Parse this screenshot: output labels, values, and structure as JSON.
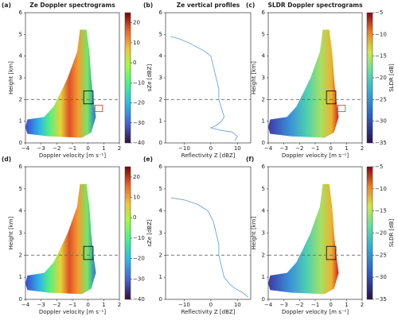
{
  "chart_data": [
    {
      "type": "spectrogram",
      "panel_label": "(a)",
      "title": "Ze Doppler spectrograms",
      "xlabel": "Doppler velocity [m s⁻¹]",
      "ylabel": "Height [km]",
      "xlim": [
        -4,
        2
      ],
      "xticks": [
        {
          "value": -4,
          "label": "−4"
        },
        {
          "value": -3,
          "label": "−3"
        },
        {
          "value": -2,
          "label": "−2"
        },
        {
          "value": -1,
          "label": "−1"
        },
        0,
        1,
        2
      ],
      "ylim": [
        0,
        6
      ],
      "yticks": [
        0,
        1,
        2,
        3,
        4,
        5,
        6
      ],
      "hline": 2,
      "colormap": "turbo",
      "colorbar_label": "sZe [dBZ]",
      "clim": [
        -40,
        25
      ],
      "cticks": [
        20,
        10,
        0,
        {
          "value": -10,
          "label": "−10"
        },
        {
          "value": -20,
          "label": "−20"
        },
        {
          "value": -30,
          "label": "−30"
        },
        {
          "value": -40,
          "label": "−40"
        }
      ]
    },
    {
      "type": "line",
      "panel_label": "(b)",
      "title": "Ze vertical profiles",
      "xlabel": "Reflectivity Z [dBZ]",
      "xlim": [
        -17,
        15
      ],
      "xticks": [
        {
          "value": -10,
          "label": "−10"
        },
        0,
        10
      ],
      "ylim": [
        0,
        6
      ],
      "yticks": [
        0,
        1,
        2,
        3,
        4,
        5,
        6
      ],
      "hline": 2,
      "color": "#5b9bd5",
      "x": [
        -15,
        -12,
        -8,
        -5,
        -2,
        0,
        1,
        2,
        3,
        3,
        4,
        5,
        4,
        2,
        0,
        3,
        8,
        10,
        9
      ],
      "y": [
        4.9,
        4.8,
        4.6,
        4.4,
        4.2,
        4.0,
        3.5,
        3.0,
        2.5,
        2.0,
        1.6,
        1.2,
        1.0,
        0.8,
        0.7,
        0.6,
        0.5,
        0.3,
        0.1
      ]
    },
    {
      "type": "spectrogram",
      "panel_label": "(c)",
      "title": "SLDR Doppler spectrograms",
      "xlabel": "Doppler velocity [m s⁻¹]",
      "ylabel": "Height [km]",
      "xlim": [
        -4,
        2
      ],
      "xticks": [
        {
          "value": -4,
          "label": "−4"
        },
        {
          "value": -3,
          "label": "−3"
        },
        {
          "value": -2,
          "label": "−2"
        },
        {
          "value": -1,
          "label": "−1"
        },
        0,
        1,
        2
      ],
      "ylim": [
        0,
        6
      ],
      "yticks": [
        0,
        1,
        2,
        3,
        4,
        5,
        6
      ],
      "hline": 2,
      "colormap": "sldr",
      "colorbar_label": "SLDR [dB]",
      "clim": [
        -35,
        -5
      ],
      "cticks": [
        {
          "value": -5,
          "label": "−5"
        },
        {
          "value": -10,
          "label": "−10"
        },
        {
          "value": -15,
          "label": "−15"
        },
        {
          "value": -20,
          "label": "−20"
        },
        {
          "value": -25,
          "label": "−25"
        },
        {
          "value": -30,
          "label": "−30"
        },
        {
          "value": -35,
          "label": "−35"
        }
      ]
    },
    {
      "type": "spectrogram",
      "panel_label": "(d)",
      "xlabel": "Doppler velocity [m s⁻¹]",
      "ylabel": "Height [km]",
      "xlim": [
        -4,
        2
      ],
      "xticks": [
        {
          "value": -4,
          "label": "−4"
        },
        {
          "value": -3,
          "label": "−3"
        },
        {
          "value": -2,
          "label": "−2"
        },
        {
          "value": -1,
          "label": "−1"
        },
        0,
        1,
        2
      ],
      "ylim": [
        0,
        6
      ],
      "yticks": [
        0,
        1,
        2,
        3,
        4,
        5,
        6
      ],
      "hline": 2,
      "colormap": "turbo",
      "colorbar_label": "sZe [dBZ]",
      "clim": [
        -40,
        25
      ],
      "cticks": [
        20,
        10,
        0,
        {
          "value": -10,
          "label": "−10"
        },
        {
          "value": -20,
          "label": "−20"
        },
        {
          "value": -30,
          "label": "−30"
        },
        {
          "value": -40,
          "label": "−40"
        }
      ]
    },
    {
      "type": "line",
      "panel_label": "(e)",
      "xlabel": "Reflectivity Z [dBZ]",
      "xlim": [
        -17,
        15
      ],
      "xticks": [
        {
          "value": -10,
          "label": "−10"
        },
        0,
        10
      ],
      "ylim": [
        0,
        6
      ],
      "yticks": [
        0,
        1,
        2,
        3,
        4,
        5,
        6
      ],
      "hline": 2,
      "color": "#5b9bd5",
      "x": [
        -15,
        -10,
        -5,
        -1,
        1,
        2,
        3,
        3,
        4,
        5,
        7,
        9,
        12,
        14
      ],
      "y": [
        4.6,
        4.5,
        4.3,
        4.0,
        3.5,
        3.0,
        2.5,
        2.0,
        1.5,
        1.0,
        0.7,
        0.5,
        0.3,
        0.1
      ]
    },
    {
      "type": "spectrogram",
      "panel_label": "(f)",
      "xlabel": "Doppler velocity [m s⁻¹]",
      "ylabel": "Height [km]",
      "xlim": [
        -4,
        2
      ],
      "xticks": [
        {
          "value": -4,
          "label": "−4"
        },
        {
          "value": -3,
          "label": "−3"
        },
        {
          "value": -2,
          "label": "−2"
        },
        {
          "value": -1,
          "label": "−1"
        },
        0,
        1,
        2
      ],
      "ylim": [
        0,
        6
      ],
      "yticks": [
        0,
        1,
        2,
        3,
        4,
        5,
        6
      ],
      "hline": 2,
      "colormap": "sldr",
      "colorbar_label": "SLDR [dB]",
      "clim": [
        -35,
        -5
      ],
      "cticks": [
        {
          "value": -5,
          "label": "−5"
        },
        {
          "value": -10,
          "label": "−10"
        },
        {
          "value": -15,
          "label": "−15"
        },
        {
          "value": -20,
          "label": "−20"
        },
        {
          "value": -25,
          "label": "−25"
        },
        {
          "value": -30,
          "label": "−30"
        },
        {
          "value": -35,
          "label": "−35"
        }
      ]
    }
  ]
}
